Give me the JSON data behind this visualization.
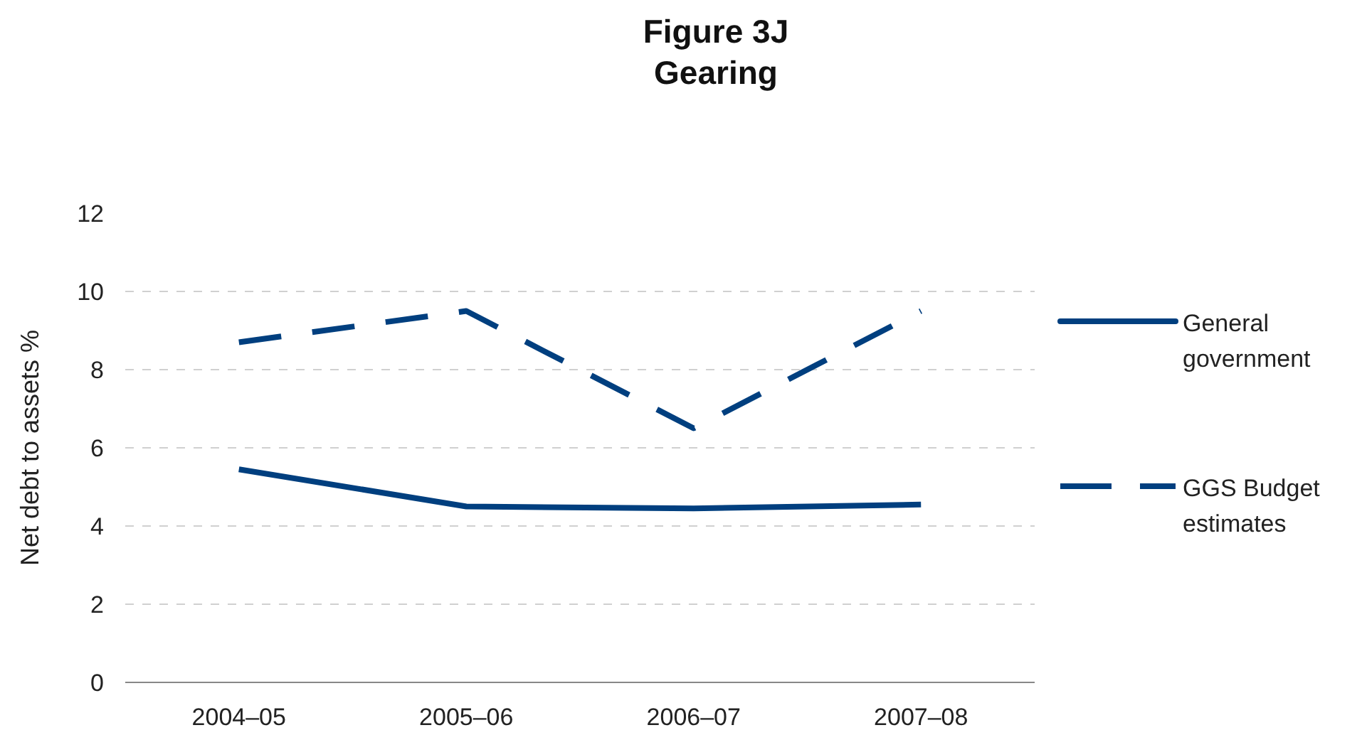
{
  "chart_data": {
    "type": "line",
    "title": "Figure 3J\nGearing",
    "ylabel": "Net debt to assets %",
    "categories": [
      "2004–05",
      "2005–06",
      "2006–07",
      "2007–08"
    ],
    "series": [
      {
        "name": "General government",
        "color": "#003f7f",
        "values": [
          5.45,
          4.5,
          4.45,
          4.55
        ],
        "line_style": "solid"
      },
      {
        "name": "GGS Budget estimates",
        "color": "#003f7f",
        "values": [
          8.7,
          9.5,
          6.5,
          9.5
        ],
        "line_style": "dashed"
      }
    ],
    "ylim": [
      0,
      12
    ],
    "yticks": [
      0,
      2,
      4,
      6,
      8,
      10,
      12
    ],
    "grid": "y",
    "legend": "right"
  }
}
